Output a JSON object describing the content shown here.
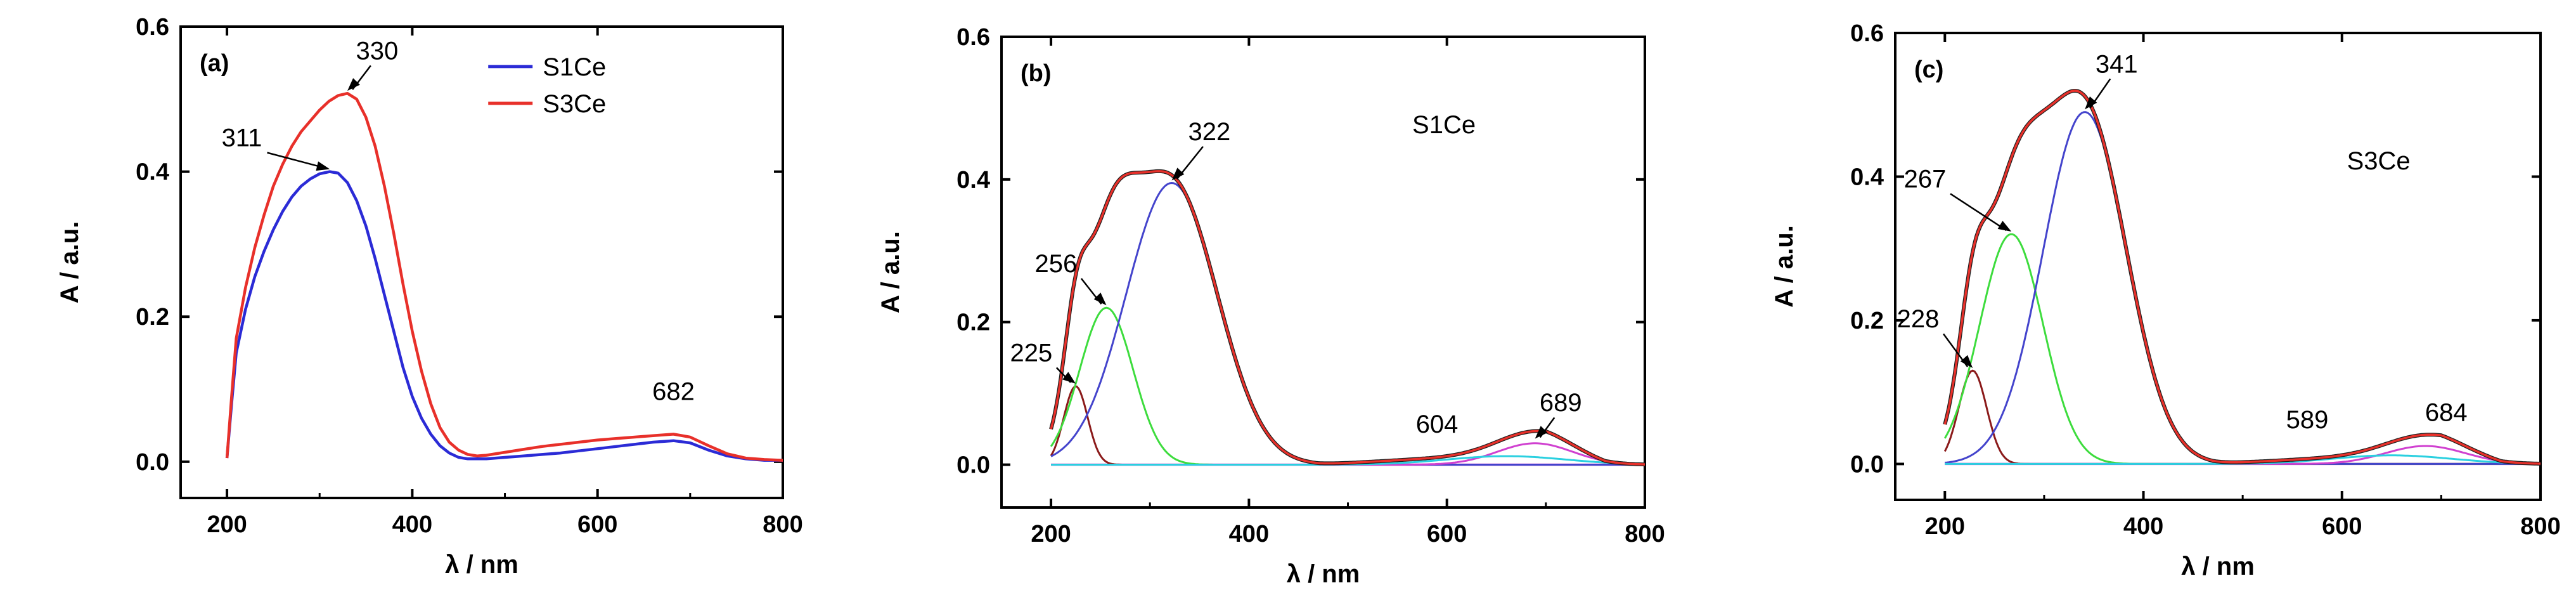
{
  "chart_data": [
    {
      "type": "line",
      "panel": "(a)",
      "xlabel": "λ / nm",
      "ylabel": "A / a.u.",
      "xlim": [
        150,
        800
      ],
      "ylim": [
        -0.05,
        0.6
      ],
      "xticks": [
        200,
        400,
        600,
        800
      ],
      "yticks": [
        0.0,
        0.2,
        0.4,
        0.6
      ],
      "xtick_labels": [
        "200",
        "400",
        "600",
        "800"
      ],
      "ytick_labels": [
        "0.0",
        "0.2",
        "0.4",
        "0.6"
      ],
      "legend": {
        "placement": "top-right",
        "entries": [
          "S1Ce",
          "S3Ce"
        ]
      },
      "series": [
        {
          "name": "S1Ce",
          "color": "#2b2bd6",
          "x": [
            200,
            205,
            210,
            220,
            230,
            240,
            250,
            260,
            270,
            280,
            290,
            300,
            311,
            320,
            330,
            340,
            350,
            360,
            370,
            380,
            390,
            400,
            410,
            420,
            430,
            440,
            450,
            460,
            480,
            500,
            520,
            540,
            560,
            580,
            600,
            620,
            640,
            660,
            682,
            700,
            720,
            740,
            760,
            780,
            800
          ],
          "y": [
            0.005,
            0.08,
            0.15,
            0.21,
            0.255,
            0.29,
            0.32,
            0.345,
            0.365,
            0.38,
            0.39,
            0.397,
            0.4,
            0.398,
            0.385,
            0.36,
            0.325,
            0.28,
            0.23,
            0.18,
            0.13,
            0.09,
            0.06,
            0.038,
            0.022,
            0.012,
            0.006,
            0.004,
            0.004,
            0.006,
            0.008,
            0.01,
            0.012,
            0.015,
            0.018,
            0.021,
            0.024,
            0.027,
            0.029,
            0.026,
            0.016,
            0.008,
            0.004,
            0.002,
            0.002
          ]
        },
        {
          "name": "S3Ce",
          "color": "#e8302a",
          "x": [
            200,
            205,
            210,
            220,
            230,
            240,
            250,
            260,
            270,
            280,
            290,
            300,
            310,
            320,
            330,
            340,
            350,
            360,
            370,
            380,
            390,
            400,
            410,
            420,
            430,
            440,
            450,
            460,
            470,
            480,
            500,
            520,
            540,
            560,
            580,
            600,
            620,
            640,
            660,
            682,
            700,
            720,
            740,
            760,
            780,
            800
          ],
          "y": [
            0.005,
            0.09,
            0.17,
            0.24,
            0.295,
            0.34,
            0.38,
            0.41,
            0.435,
            0.455,
            0.47,
            0.485,
            0.497,
            0.505,
            0.508,
            0.5,
            0.475,
            0.435,
            0.38,
            0.315,
            0.245,
            0.18,
            0.125,
            0.08,
            0.047,
            0.027,
            0.016,
            0.01,
            0.008,
            0.009,
            0.013,
            0.017,
            0.021,
            0.024,
            0.027,
            0.03,
            0.032,
            0.034,
            0.036,
            0.038,
            0.034,
            0.022,
            0.011,
            0.005,
            0.003,
            0.002
          ]
        }
      ],
      "annotations": [
        {
          "text": "330",
          "x": 330,
          "y": 0.508,
          "label_x": 362,
          "label_y": 0.555
        },
        {
          "text": "311",
          "x": 311,
          "y": 0.4,
          "label_x": 216,
          "label_y": 0.435
        },
        {
          "text": "682",
          "x": 682,
          "y": 0.038,
          "label_x": 0,
          "label_y": 0.085
        }
      ]
    },
    {
      "type": "line",
      "panel": "(b)",
      "sample": "S1Ce",
      "xlabel": "λ / nm",
      "ylabel": "A / a.u.",
      "xlim": [
        150,
        800
      ],
      "ylim": [
        -0.06,
        0.6
      ],
      "xticks": [
        200,
        400,
        600,
        800
      ],
      "yticks": [
        0.0,
        0.2,
        0.4,
        0.6
      ],
      "xtick_labels": [
        "200",
        "400",
        "600",
        "800"
      ],
      "ytick_labels": [
        "0.0",
        "0.2",
        "0.4",
        "0.6"
      ],
      "peaks": [
        {
          "name": "225",
          "center": 225,
          "amp": 0.11,
          "width": 12,
          "color": "#8b1a1a"
        },
        {
          "name": "256",
          "center": 256,
          "amp": 0.22,
          "width": 27,
          "color": "#3ddc3d"
        },
        {
          "name": "322",
          "center": 322,
          "amp": 0.395,
          "width": 46,
          "color": "#4444cc"
        },
        {
          "name": "604",
          "center": 604,
          "amp": 0.0,
          "width": 60,
          "color": "#d040d0"
        },
        {
          "name": "689",
          "center": 689,
          "amp": 0.03,
          "width": 38,
          "color": "#d040d0"
        },
        {
          "name": "shoulder",
          "center": 660,
          "amp": 0.012,
          "width": 60,
          "color": "#2ad0e0"
        }
      ],
      "baseline": {
        "from": 200,
        "to": 800,
        "color": "#d040d0"
      },
      "annotations": [
        {
          "text": "322",
          "x": 322,
          "y": 0.395,
          "label_x": 360,
          "label_y": 0.455
        },
        {
          "text": "256",
          "x": 256,
          "y": 0.22,
          "label_x": 205,
          "label_y": 0.27
        },
        {
          "text": "225",
          "x": 225,
          "y": 0.11,
          "label_x": 180,
          "label_y": 0.145
        },
        {
          "text": "604",
          "x": 604,
          "y": 0.02,
          "label_x": 590,
          "label_y": 0.045,
          "arrow": false
        },
        {
          "text": "689",
          "x": 689,
          "y": 0.033,
          "label_x": 715,
          "label_y": 0.075
        }
      ]
    },
    {
      "type": "line",
      "panel": "(c)",
      "sample": "S3Ce",
      "xlabel": "λ / nm",
      "ylabel": "A / a.u.",
      "xlim": [
        150,
        800
      ],
      "ylim": [
        -0.05,
        0.6
      ],
      "xticks": [
        200,
        400,
        600,
        800
      ],
      "yticks": [
        0.0,
        0.2,
        0.4,
        0.6
      ],
      "xtick_labels": [
        "200",
        "400",
        "600",
        "800"
      ],
      "ytick_labels": [
        "0.0",
        "0.2",
        "0.4",
        "0.6"
      ],
      "peaks": [
        {
          "name": "228",
          "center": 228,
          "amp": 0.13,
          "width": 14,
          "color": "#8b1a1a"
        },
        {
          "name": "267",
          "center": 267,
          "amp": 0.32,
          "width": 32,
          "color": "#3ddc3d"
        },
        {
          "name": "341",
          "center": 341,
          "amp": 0.49,
          "width": 42,
          "color": "#4444cc"
        },
        {
          "name": "589",
          "center": 589,
          "amp": 0.0,
          "width": 60,
          "color": "#d040d0"
        },
        {
          "name": "684",
          "center": 684,
          "amp": 0.025,
          "width": 40,
          "color": "#d040d0"
        },
        {
          "name": "shoulder",
          "center": 650,
          "amp": 0.012,
          "width": 60,
          "color": "#2ad0e0"
        }
      ],
      "baseline": {
        "from": 200,
        "to": 800,
        "color": "#d040d0"
      },
      "annotations": [
        {
          "text": "341",
          "x": 341,
          "y": 0.49,
          "label_x": 373,
          "label_y": 0.545
        },
        {
          "text": "267",
          "x": 267,
          "y": 0.32,
          "label_x": 180,
          "label_y": 0.385
        },
        {
          "text": "228",
          "x": 228,
          "y": 0.13,
          "label_x": 173,
          "label_y": 0.19
        },
        {
          "text": "589",
          "x": 589,
          "y": 0.03,
          "label_x": 565,
          "label_y": 0.05,
          "arrow": false
        },
        {
          "text": "684",
          "x": 684,
          "y": 0.03,
          "label_x": 705,
          "label_y": 0.06,
          "arrow": false
        }
      ]
    }
  ]
}
